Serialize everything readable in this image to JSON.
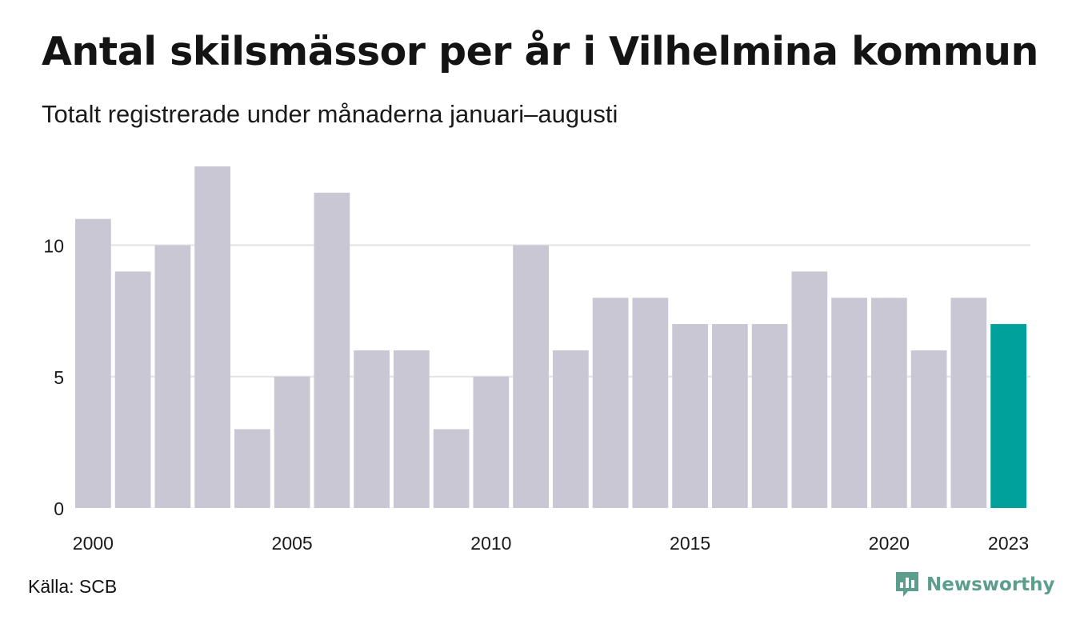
{
  "header": {
    "title": "Antal skilsmässor per år i Vilhelmina kommun",
    "subtitle": "Totalt registrerade under månaderna januari–augusti"
  },
  "footer": {
    "source": "Källa: SCB",
    "brand": "Newsworthy"
  },
  "colors": {
    "bar": "#c9c7d3",
    "highlight": "#00a19a",
    "grid": "#e3e3e3",
    "brand": "#5c9e8e"
  },
  "chart_data": {
    "type": "bar",
    "categories": [
      "2000",
      "2001",
      "2002",
      "2003",
      "2004",
      "2005",
      "2006",
      "2007",
      "2008",
      "2009",
      "2010",
      "2011",
      "2012",
      "2013",
      "2014",
      "2015",
      "2016",
      "2017",
      "2018",
      "2019",
      "2020",
      "2021",
      "2022",
      "2023"
    ],
    "values": [
      11,
      9,
      10,
      13,
      3,
      5,
      12,
      6,
      6,
      3,
      5,
      10,
      6,
      8,
      8,
      7,
      7,
      7,
      9,
      8,
      8,
      6,
      8,
      7
    ],
    "highlight": [
      "2023"
    ],
    "x_tick_labels": [
      "2000",
      "2005",
      "2010",
      "2015",
      "2020",
      "2023"
    ],
    "y_ticks": [
      0,
      5,
      10
    ],
    "ylim": [
      0,
      13
    ],
    "grid": true,
    "legend": "none",
    "xlabel": "",
    "ylabel": ""
  }
}
